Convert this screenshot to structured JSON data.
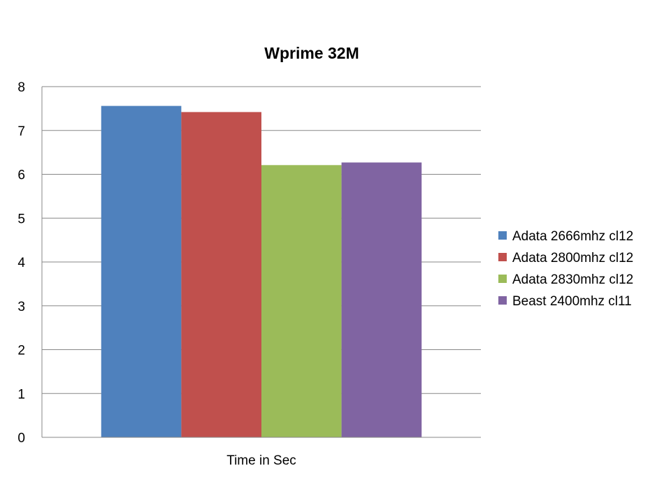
{
  "chart_data": {
    "type": "bar",
    "title": "Wprime 32M",
    "categories": [
      "Time in Sec"
    ],
    "series": [
      {
        "name": "Adata 2666mhz cl12",
        "values": [
          7.56
        ],
        "color": "#4F81BD"
      },
      {
        "name": "Adata 2800mhz cl12",
        "values": [
          7.42
        ],
        "color": "#C0504D"
      },
      {
        "name": "Adata 2830mhz cl12",
        "values": [
          6.21
        ],
        "color": "#9BBB59"
      },
      {
        "name": "Beast 2400mhz cl11",
        "values": [
          6.27
        ],
        "color": "#8064A2"
      }
    ],
    "y_ticks": [
      "0",
      "1",
      "2",
      "3",
      "4",
      "5",
      "6",
      "7",
      "8"
    ],
    "xlabel": "",
    "ylabel": "",
    "ylim": [
      0,
      8
    ],
    "grid": true,
    "gridline_color": "#878787",
    "legend_position": "right"
  }
}
